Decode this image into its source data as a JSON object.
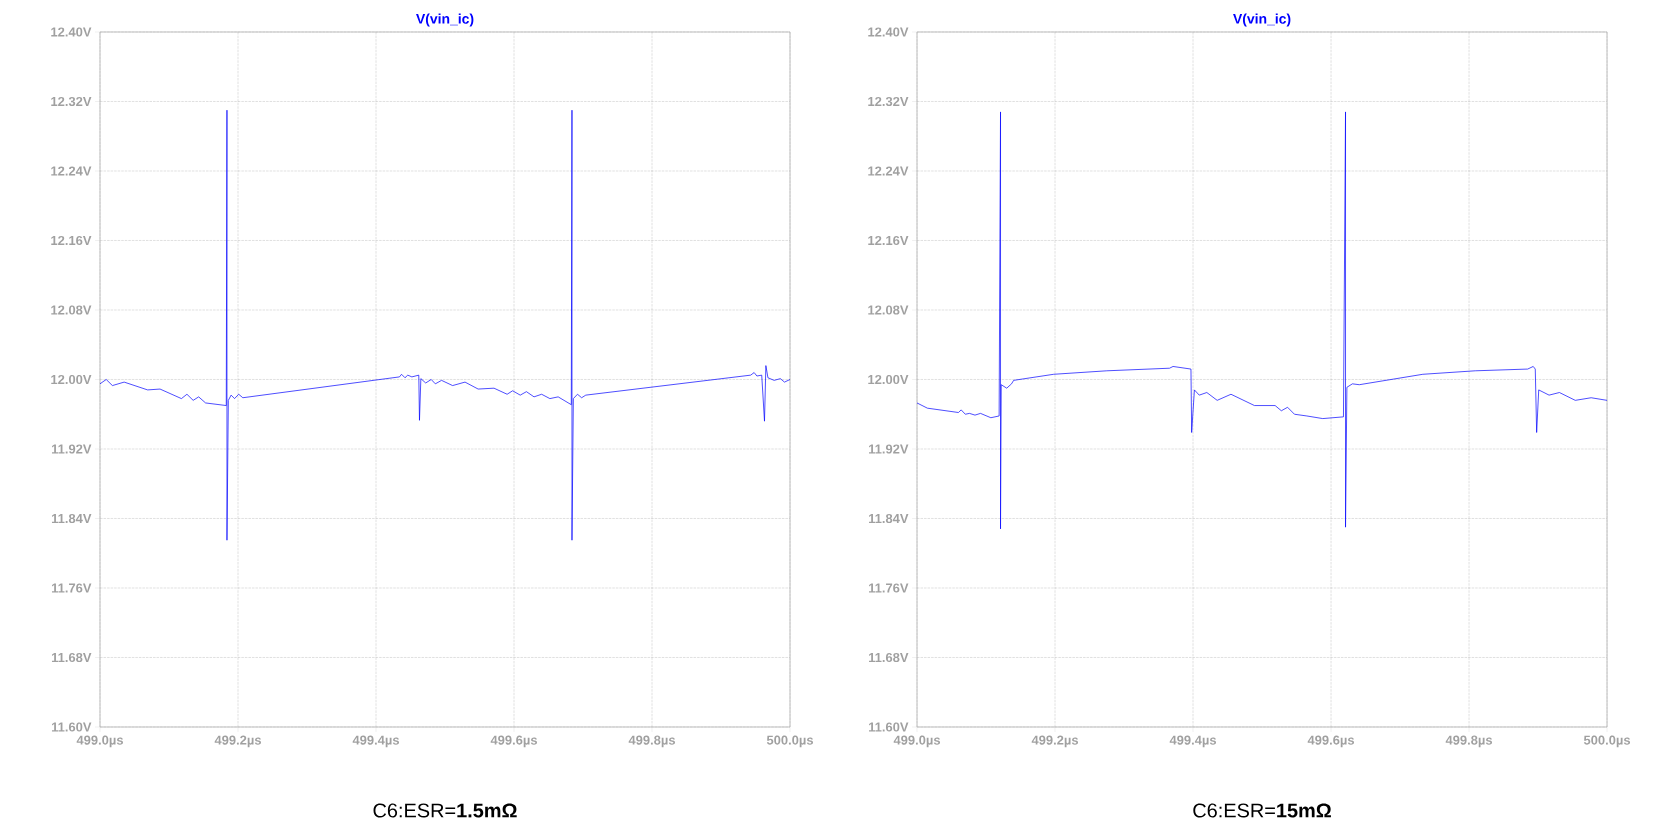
{
  "chart_data": [
    {
      "type": "line",
      "title": "V(vin_ic)",
      "color": "#0000ff",
      "grid": true,
      "x": [
        499.0,
        499.009,
        499.018,
        499.035,
        499.069,
        499.087,
        499.118,
        499.126,
        499.135,
        499.143,
        499.153,
        499.183,
        499.184,
        499.184,
        499.186,
        499.19,
        499.195,
        499.201,
        499.207,
        499.434,
        499.437,
        499.442,
        499.446,
        499.452,
        499.462,
        499.463,
        499.465,
        499.472,
        499.48,
        499.486,
        499.495,
        499.511,
        499.529,
        499.548,
        499.571,
        499.59,
        499.598,
        499.609,
        499.618,
        499.629,
        499.64,
        499.652,
        499.664,
        499.683,
        499.684,
        499.684,
        499.686,
        499.692,
        499.698,
        499.704,
        499.943,
        499.948,
        499.952,
        499.959,
        499.963,
        499.965,
        499.968,
        499.977,
        499.986,
        499.992,
        500.0
      ],
      "values": [
        11.995,
        12.0,
        11.993,
        11.997,
        11.988,
        11.989,
        11.978,
        11.983,
        11.976,
        11.98,
        11.973,
        11.97,
        12.31,
        11.815,
        11.976,
        11.982,
        11.978,
        11.983,
        11.979,
        12.003,
        12.006,
        12.002,
        12.005,
        12.003,
        12.005,
        11.953,
        12.001,
        11.996,
        12.0,
        11.995,
        11.999,
        11.993,
        11.997,
        11.989,
        11.99,
        11.983,
        11.987,
        11.982,
        11.986,
        11.98,
        11.983,
        11.978,
        11.98,
        11.971,
        12.31,
        11.815,
        11.978,
        11.983,
        11.979,
        11.982,
        12.005,
        12.008,
        12.004,
        12.005,
        11.952,
        12.016,
        12.002,
        11.999,
        12.001,
        11.997,
        12.0
      ],
      "xlim": [
        499.0,
        500.0
      ],
      "xticks": [
        {
          "value": 499.0,
          "label": "499.0µs"
        },
        {
          "value": 499.2,
          "label": "499.2µs"
        },
        {
          "value": 499.4,
          "label": "499.4µs"
        },
        {
          "value": 499.6,
          "label": "499.6µs"
        },
        {
          "value": 499.8,
          "label": "499.8µs"
        },
        {
          "value": 500.0,
          "label": "500.0µs"
        }
      ],
      "ylim": [
        11.6,
        12.4
      ],
      "yticks": [
        {
          "value": 11.6,
          "label": "11.60V"
        },
        {
          "value": 11.68,
          "label": "11.68V"
        },
        {
          "value": 11.76,
          "label": "11.76V"
        },
        {
          "value": 11.84,
          "label": "11.84V"
        },
        {
          "value": 11.92,
          "label": "11.92V"
        },
        {
          "value": 12.0,
          "label": "12.00V"
        },
        {
          "value": 12.08,
          "label": "12.08V"
        },
        {
          "value": 12.16,
          "label": "12.16V"
        },
        {
          "value": 12.24,
          "label": "12.24V"
        },
        {
          "value": 12.32,
          "label": "12.32V"
        },
        {
          "value": 12.4,
          "label": "12.40V"
        }
      ],
      "annotations": [
        "C6:ESR=**1.5mΩ**"
      ]
    },
    {
      "type": "line",
      "title": "V(vin_ic)",
      "color": "#0000ff",
      "grid": true,
      "x": [
        499.0,
        499.015,
        499.06,
        499.064,
        499.07,
        499.076,
        499.084,
        499.092,
        499.107,
        499.119,
        499.121,
        499.121,
        499.122,
        499.13,
        499.137,
        499.14,
        499.198,
        499.275,
        499.366,
        499.371,
        499.397,
        499.398,
        499.402,
        499.409,
        499.42,
        499.435,
        499.455,
        499.489,
        499.519,
        499.528,
        499.537,
        499.547,
        499.565,
        499.588,
        499.618,
        499.621,
        499.621,
        499.623,
        499.631,
        499.641,
        499.733,
        499.809,
        499.885,
        499.893,
        499.896,
        499.898,
        499.901,
        499.916,
        499.931,
        499.954,
        499.977,
        500.0
      ],
      "values": [
        11.973,
        11.967,
        11.962,
        11.965,
        11.96,
        11.961,
        11.959,
        11.961,
        11.956,
        11.958,
        12.308,
        11.828,
        11.994,
        11.99,
        11.995,
        11.999,
        12.006,
        12.01,
        12.013,
        12.015,
        12.012,
        11.939,
        11.988,
        11.982,
        11.985,
        11.976,
        11.983,
        11.97,
        11.97,
        11.964,
        11.968,
        11.96,
        11.958,
        11.955,
        11.957,
        12.308,
        11.83,
        11.991,
        11.995,
        11.994,
        12.006,
        12.01,
        12.012,
        12.015,
        12.012,
        11.939,
        11.988,
        11.982,
        11.985,
        11.976,
        11.979,
        11.976
      ],
      "xlim": [
        499.0,
        500.0
      ],
      "xticks": [
        {
          "value": 499.0,
          "label": "499.0µs"
        },
        {
          "value": 499.2,
          "label": "499.2µs"
        },
        {
          "value": 499.4,
          "label": "499.4µs"
        },
        {
          "value": 499.6,
          "label": "499.6µs"
        },
        {
          "value": 499.8,
          "label": "499.8µs"
        },
        {
          "value": 500.0,
          "label": "500.0µs"
        }
      ],
      "ylim": [
        11.6,
        12.4
      ],
      "yticks": [
        {
          "value": 11.6,
          "label": "11.60V"
        },
        {
          "value": 11.68,
          "label": "11.68V"
        },
        {
          "value": 11.76,
          "label": "11.76V"
        },
        {
          "value": 11.84,
          "label": "11.84V"
        },
        {
          "value": 11.92,
          "label": "11.92V"
        },
        {
          "value": 12.0,
          "label": "12.00V"
        },
        {
          "value": 12.08,
          "label": "12.08V"
        },
        {
          "value": 12.16,
          "label": "12.16V"
        },
        {
          "value": 12.24,
          "label": "12.24V"
        },
        {
          "value": 12.32,
          "label": "12.32V"
        },
        {
          "value": 12.4,
          "label": "12.40V"
        }
      ],
      "annotations": [
        "C6:ESR=**15mΩ**"
      ]
    }
  ]
}
